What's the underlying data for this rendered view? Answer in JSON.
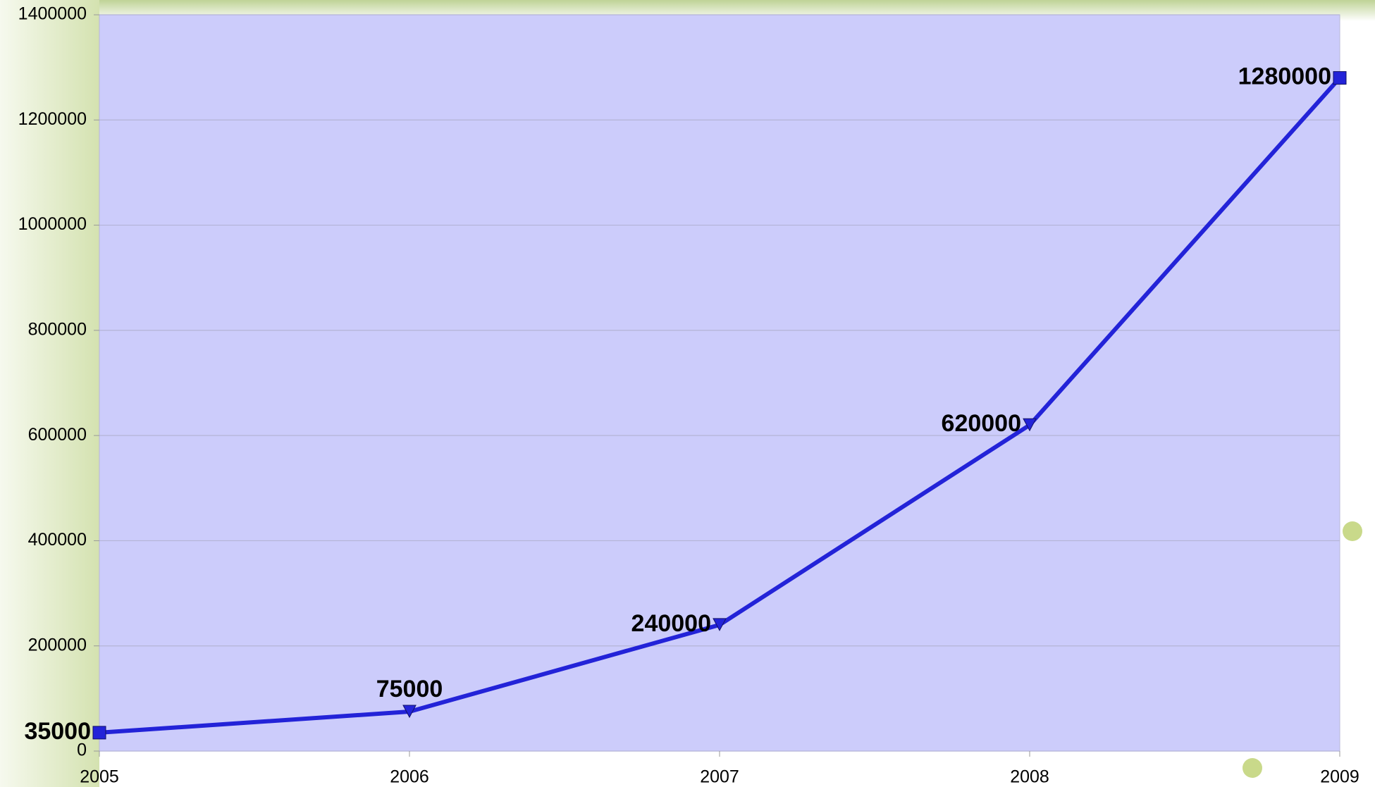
{
  "chart_data": {
    "type": "line",
    "x": [
      2005,
      2006,
      2007,
      2008,
      2009
    ],
    "series": [
      {
        "color": "#2323d8",
        "values": [
          35000,
          75000,
          240000,
          620000,
          1280000
        ]
      }
    ],
    "xlim": [
      2005,
      2009
    ],
    "xticks": [
      2005,
      2006,
      2007,
      2008,
      2009
    ],
    "ylim": [
      0,
      1400000
    ],
    "yticks": [
      0,
      200000,
      400000,
      600000,
      800000,
      1000000,
      1200000,
      1400000
    ],
    "grid": true
  }
}
